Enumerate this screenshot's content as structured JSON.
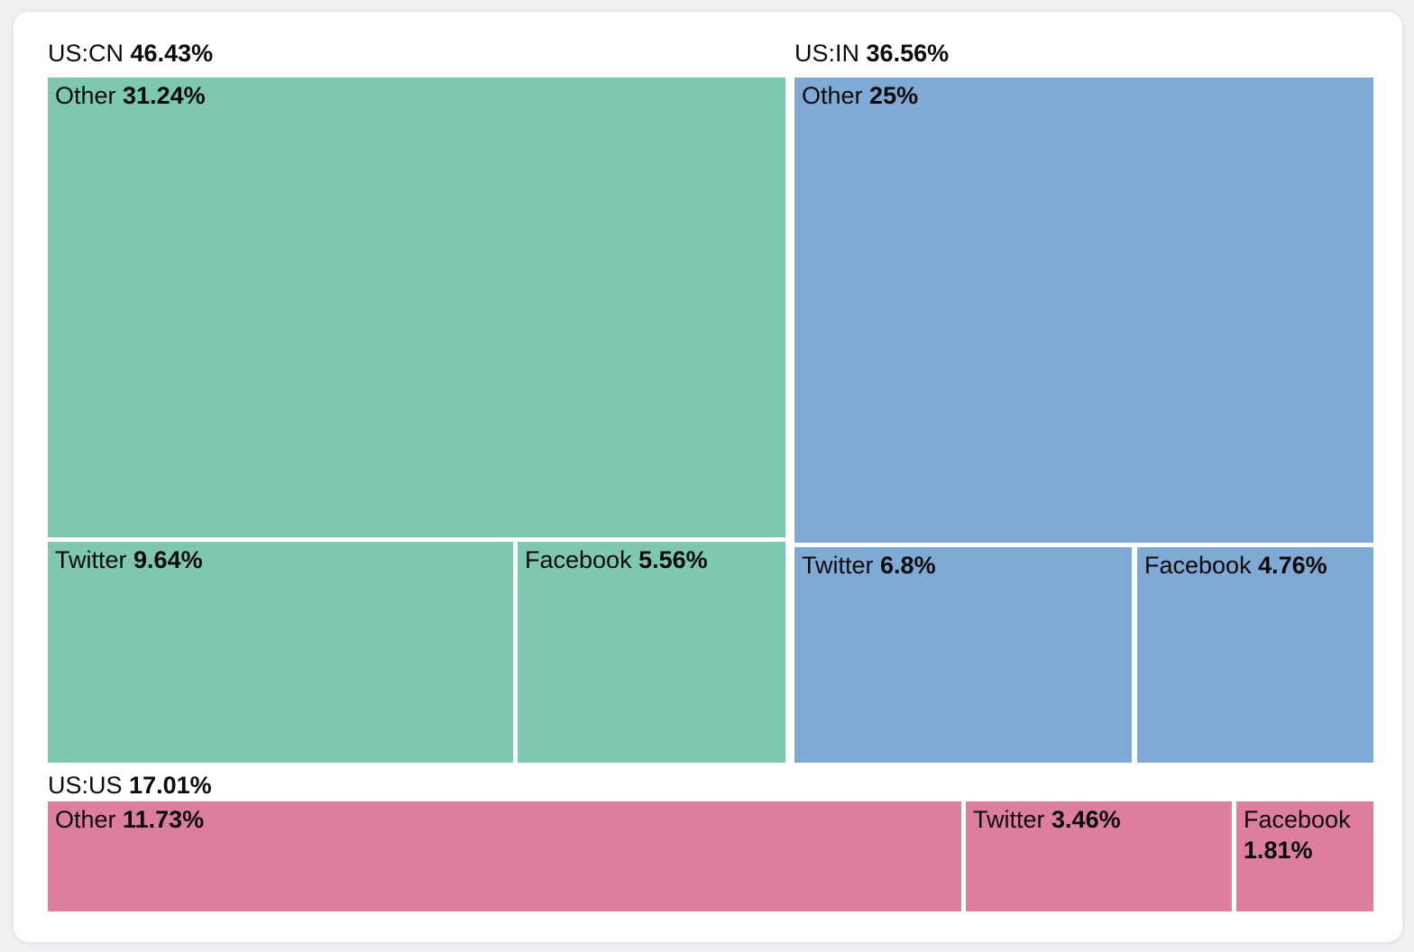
{
  "page": {
    "background_color": "#f0f0f3",
    "card_color": "#ffffff"
  },
  "chart_data": {
    "type": "treemap",
    "title": "",
    "unit": "%",
    "legend": false,
    "layout": "grouped treemap: US:CN top-left, US:IN top-right, US:US bottom row; tile areas proportional to percentage values; group headers above each group",
    "groups": [
      {
        "label": "US:CN",
        "pct_label": "46.43%",
        "value": 46.43,
        "color": "#7fc8af",
        "children": [
          {
            "name": "Other",
            "pct_label": "31.24%",
            "value": 31.24
          },
          {
            "name": "Twitter",
            "pct_label": "9.64%",
            "value": 9.64
          },
          {
            "name": "Facebook",
            "pct_label": "5.56%",
            "value": 5.56
          }
        ]
      },
      {
        "label": "US:IN",
        "pct_label": "36.56%",
        "value": 36.56,
        "color": "#80a9d6",
        "children": [
          {
            "name": "Other",
            "pct_label": "25%",
            "value": 25
          },
          {
            "name": "Twitter",
            "pct_label": "6.8%",
            "value": 6.8
          },
          {
            "name": "Facebook",
            "pct_label": "4.76%",
            "value": 4.76
          }
        ]
      },
      {
        "label": "US:US",
        "pct_label": "17.01%",
        "value": 17.01,
        "color": "#de7e9e",
        "children": [
          {
            "name": "Other",
            "pct_label": "11.73%",
            "value": 11.73
          },
          {
            "name": "Twitter",
            "pct_label": "3.46%",
            "value": 3.46
          },
          {
            "name": "Facebook",
            "pct_label": "1.81%",
            "value": 1.81
          }
        ]
      }
    ]
  }
}
